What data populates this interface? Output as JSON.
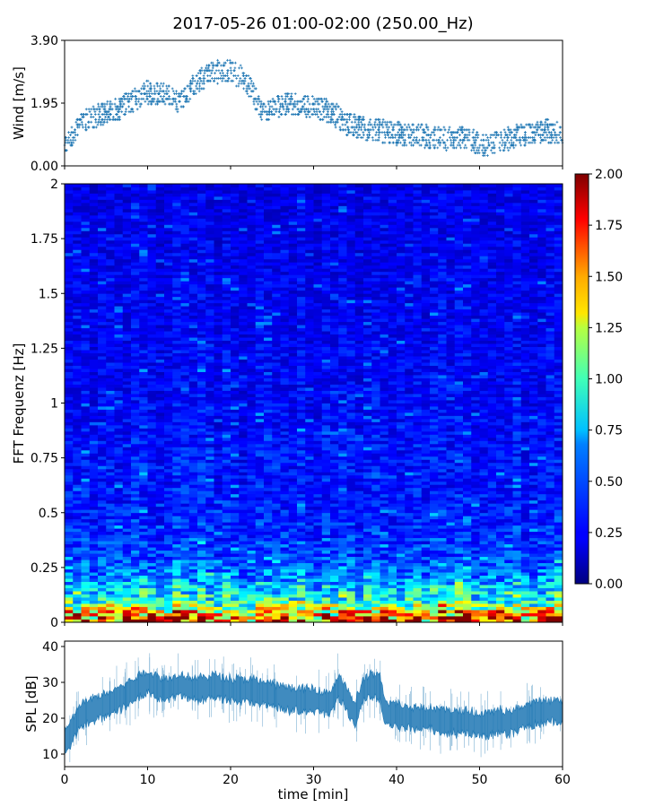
{
  "chart_data": [
    {
      "type": "scatter",
      "title": "2017-05-26 01:00-02:00 (250.00_Hz)",
      "ylabel": "Wind [m/s]",
      "xlim": [
        0,
        60
      ],
      "ylim": [
        0,
        3.9
      ],
      "yticks": [
        "0.00",
        "1.95",
        "3.90"
      ],
      "marker_color": "#1f77b4",
      "trend": {
        "x": [
          0,
          2,
          4,
          6,
          8,
          10,
          12,
          14,
          16,
          18,
          20,
          22,
          24,
          26,
          28,
          30,
          32,
          34,
          36,
          38,
          40,
          42,
          44,
          46,
          48,
          50,
          52,
          54,
          56,
          58,
          60
        ],
        "y": [
          0.7,
          1.3,
          1.6,
          1.7,
          2.0,
          2.3,
          2.2,
          2.0,
          2.6,
          2.9,
          3.0,
          2.6,
          1.6,
          1.9,
          1.9,
          1.8,
          1.7,
          1.3,
          1.2,
          1.1,
          1.0,
          0.95,
          0.9,
          0.85,
          0.9,
          0.65,
          0.7,
          0.9,
          1.0,
          1.1,
          1.0
        ]
      },
      "spread": 0.35
    },
    {
      "type": "heatmap",
      "ylabel": "FFT Frequenz [Hz]",
      "xlim": [
        0,
        60
      ],
      "ylim": [
        0,
        2
      ],
      "yticks": [
        "0",
        "0.25",
        "0.5",
        "0.75",
        "1",
        "1.25",
        "1.5",
        "1.75",
        "2"
      ],
      "colorbar": {
        "range": [
          0,
          2
        ],
        "ticks": [
          "0.00",
          "0.25",
          "0.50",
          "0.75",
          "1.00",
          "1.25",
          "1.50",
          "1.75",
          "2.00"
        ],
        "colormap": "jet"
      },
      "description_levels": {
        "freq": [
          0,
          0.05,
          0.1,
          0.2,
          0.3,
          0.5,
          1.0,
          2.0
        ],
        "level": [
          1.8,
          1.3,
          0.8,
          0.55,
          0.38,
          0.3,
          0.25,
          0.2
        ]
      }
    },
    {
      "type": "area",
      "ylabel": "SPL [dB]",
      "xlabel": "time [min]",
      "xlim": [
        0,
        60
      ],
      "ylim": [
        6.5,
        41.5
      ],
      "yticks": [
        "10",
        "20",
        "30",
        "40"
      ],
      "xticks": [
        "0",
        "10",
        "20",
        "30",
        "40",
        "50",
        "60"
      ],
      "color": "#1f77b4",
      "mean": {
        "x": [
          0,
          1,
          2,
          3,
          5,
          7,
          9,
          10,
          12,
          14,
          16,
          18,
          20,
          22,
          24,
          26,
          28,
          30,
          32,
          33,
          34,
          35,
          36,
          37,
          38,
          38.5,
          40,
          42,
          44,
          46,
          48,
          50,
          52,
          54,
          56,
          58,
          60
        ],
        "y": [
          13,
          17,
          21,
          22,
          24,
          26,
          29,
          30,
          28,
          29,
          28,
          29,
          28,
          28,
          27,
          26,
          25,
          25,
          24,
          29,
          25,
          21,
          28,
          29,
          29,
          22,
          21,
          20,
          20,
          19,
          19,
          18,
          19,
          19,
          21,
          22,
          22
        ]
      },
      "spread": 3.5
    }
  ]
}
